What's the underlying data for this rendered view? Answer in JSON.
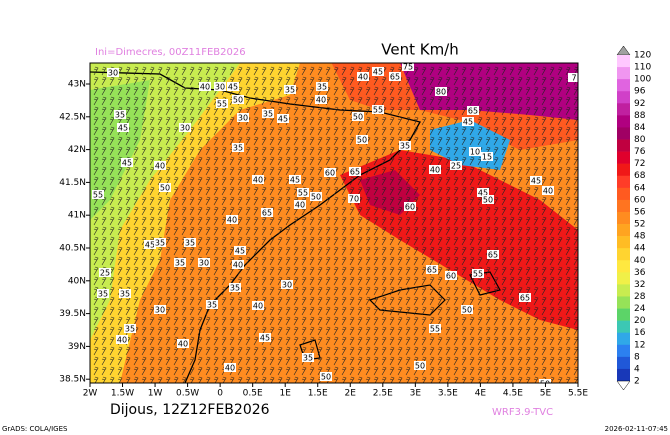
{
  "header": {
    "title": "Vent Km/h",
    "init": "Ini=Dimecres, 00Z11FEB2026",
    "valid": "Dijous, 12Z12FEB2026",
    "model": "WRF3.9-TVC"
  },
  "footer": {
    "software": "GrADS: COLA/IGES",
    "timestamp": "2026-02-11-07:45"
  },
  "map": {
    "lon_labels": [
      "2W",
      "1.5W",
      "1W",
      "0.5W",
      "0",
      "0.5E",
      "1E",
      "1.5E",
      "2E",
      "2.5E",
      "3E",
      "3.5E",
      "4E",
      "4.5E",
      "5E",
      "5.5E"
    ],
    "lat_labels": [
      "43N",
      "42.5N",
      "42N",
      "41.5N",
      "41N",
      "40.5N",
      "40N",
      "39.5N",
      "39N",
      "38.5N"
    ],
    "contour_labels": [
      "30",
      "40",
      "30",
      "45",
      "55",
      "50",
      "30",
      "35",
      "45",
      "35",
      "35",
      "40",
      "40",
      "45",
      "65",
      "75",
      "80",
      "65",
      "45",
      "55",
      "50",
      "50",
      "35",
      "35",
      "45",
      "30",
      "35",
      "45",
      "40",
      "50",
      "40",
      "45",
      "55",
      "50",
      "60",
      "65",
      "70",
      "60",
      "40",
      "25",
      "10",
      "15",
      "45",
      "50",
      "40",
      "45",
      "55",
      "40",
      "65",
      "40",
      "45",
      "35",
      "35",
      "45",
      "25",
      "35",
      "30",
      "40",
      "65",
      "65",
      "60",
      "55",
      "65",
      "35",
      "35",
      "35",
      "30",
      "35",
      "40",
      "30",
      "35",
      "40",
      "40",
      "50",
      "55",
      "45",
      "35",
      "50",
      "50",
      "50",
      "40",
      "7"
    ]
  },
  "colorbar": {
    "labels": [
      "120",
      "110",
      "100",
      "96",
      "92",
      "88",
      "84",
      "80",
      "76",
      "72",
      "68",
      "64",
      "60",
      "56",
      "52",
      "48",
      "44",
      "40",
      "36",
      "32",
      "28",
      "24",
      "20",
      "16",
      "12",
      "8",
      "4",
      "2"
    ],
    "colors": [
      "#ffc8ff",
      "#f096f0",
      "#e064e0",
      "#d040c8",
      "#c020a0",
      "#b00080",
      "#a00064",
      "#c00040",
      "#e0002c",
      "#f01818",
      "#ff3c28",
      "#ff5a20",
      "#ff7420",
      "#ff8c20",
      "#ffa420",
      "#ffbc24",
      "#ffd430",
      "#ffe840",
      "#f0f048",
      "#c8ec50",
      "#96e258",
      "#5cd468",
      "#3cc8b4",
      "#30a8e8",
      "#2c80f0",
      "#2058d8",
      "#1838b8"
    ]
  }
}
